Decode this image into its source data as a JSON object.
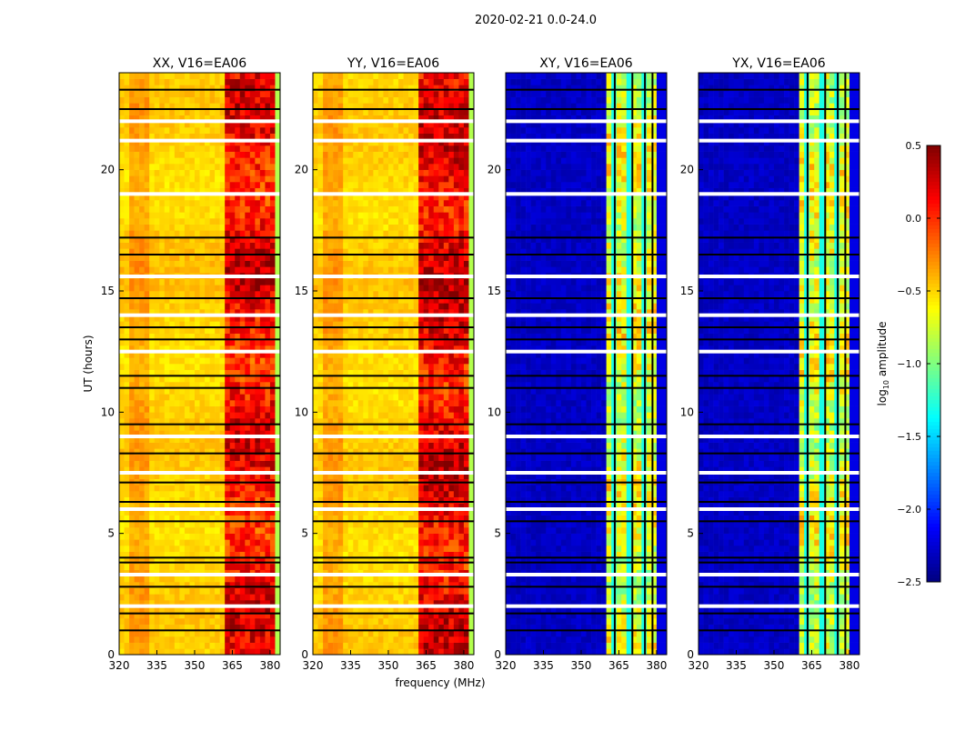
{
  "chart_data": {
    "type": "heatmap",
    "suptitle": "2020-02-21 0.0-24.0",
    "xlabel": "frequency (MHz)",
    "ylabel": "UT (hours)",
    "xlim": [
      320,
      384
    ],
    "ylim": [
      0,
      24
    ],
    "xticks": [
      "320",
      "335",
      "350",
      "365",
      "380"
    ],
    "yticks": [
      "0",
      "5",
      "10",
      "15",
      "20"
    ],
    "colorbar": {
      "label": "log10 amplitude",
      "label_base": "log",
      "label_sub": "10",
      "label_rest": " amplitude",
      "range": [
        -2.5,
        0.5
      ],
      "ticks": [
        "0.5",
        "0.0",
        "−0.5",
        "−1.0",
        "−1.5",
        "−2.0",
        "−2.5"
      ],
      "colormap": "jet"
    },
    "freq_bin_MHz": 2,
    "panels": [
      {
        "title": "XX, V16=EA06",
        "baseline": -0.5,
        "band": [
          362,
          381,
          0.1
        ],
        "edge": -0.85,
        "show_ylabel": true
      },
      {
        "title": "YY, V16=EA06",
        "baseline": -0.5,
        "band": [
          362,
          381,
          0.15
        ],
        "edge": -0.85,
        "show_xlabel": true
      },
      {
        "title": "XY, V16=EA06",
        "baseline": -2.3,
        "band": [
          361,
          380,
          -0.7
        ],
        "edge": -2.2
      },
      {
        "title": "YX, V16=EA06",
        "baseline": -2.3,
        "band": [
          361,
          380,
          -0.7
        ],
        "edge": -2.2
      }
    ],
    "flagged_rows_black_hours": [
      1.0,
      1.7,
      2.8,
      3.8,
      4.0,
      5.5,
      6.3,
      7.1,
      8.3,
      9.5,
      11.0,
      11.5,
      13.0,
      13.5,
      14.7,
      16.5,
      17.2,
      22.5,
      23.3
    ],
    "flagged_rows_white_hours": [
      2.0,
      3.3,
      6.0,
      7.5,
      9.0,
      12.5,
      14.0,
      15.6,
      19.0,
      21.2,
      22.0
    ]
  }
}
